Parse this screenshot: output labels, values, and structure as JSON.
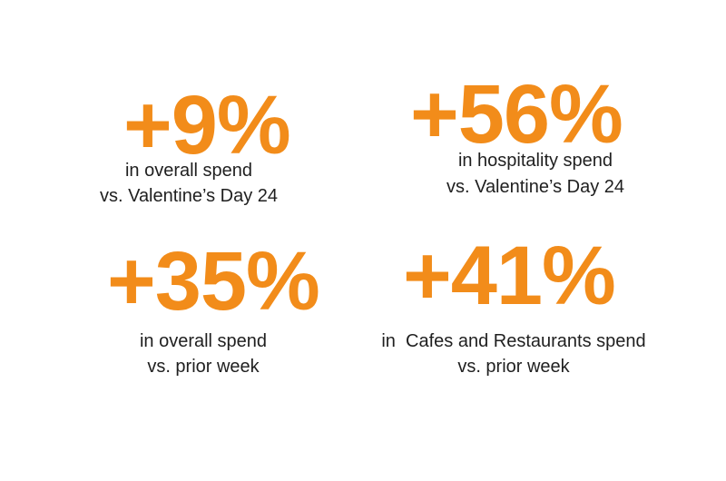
{
  "accent_color": "#f28c1a",
  "text_color": "#1f1f1f",
  "stats": [
    {
      "value": "+9%",
      "caption_line1": "in overall spend",
      "caption_line2": "vs. Valentine’s Day 24"
    },
    {
      "value": "+56%",
      "caption_line1": "in hospitality spend",
      "caption_line2": "vs. Valentine’s Day 24"
    },
    {
      "value": "+35%",
      "caption_line1": "in overall spend",
      "caption_line2": "vs. prior week"
    },
    {
      "value": "+41%",
      "caption_line1": "in  Cafes and Restaurants spend",
      "caption_line2": "vs. prior week"
    }
  ]
}
